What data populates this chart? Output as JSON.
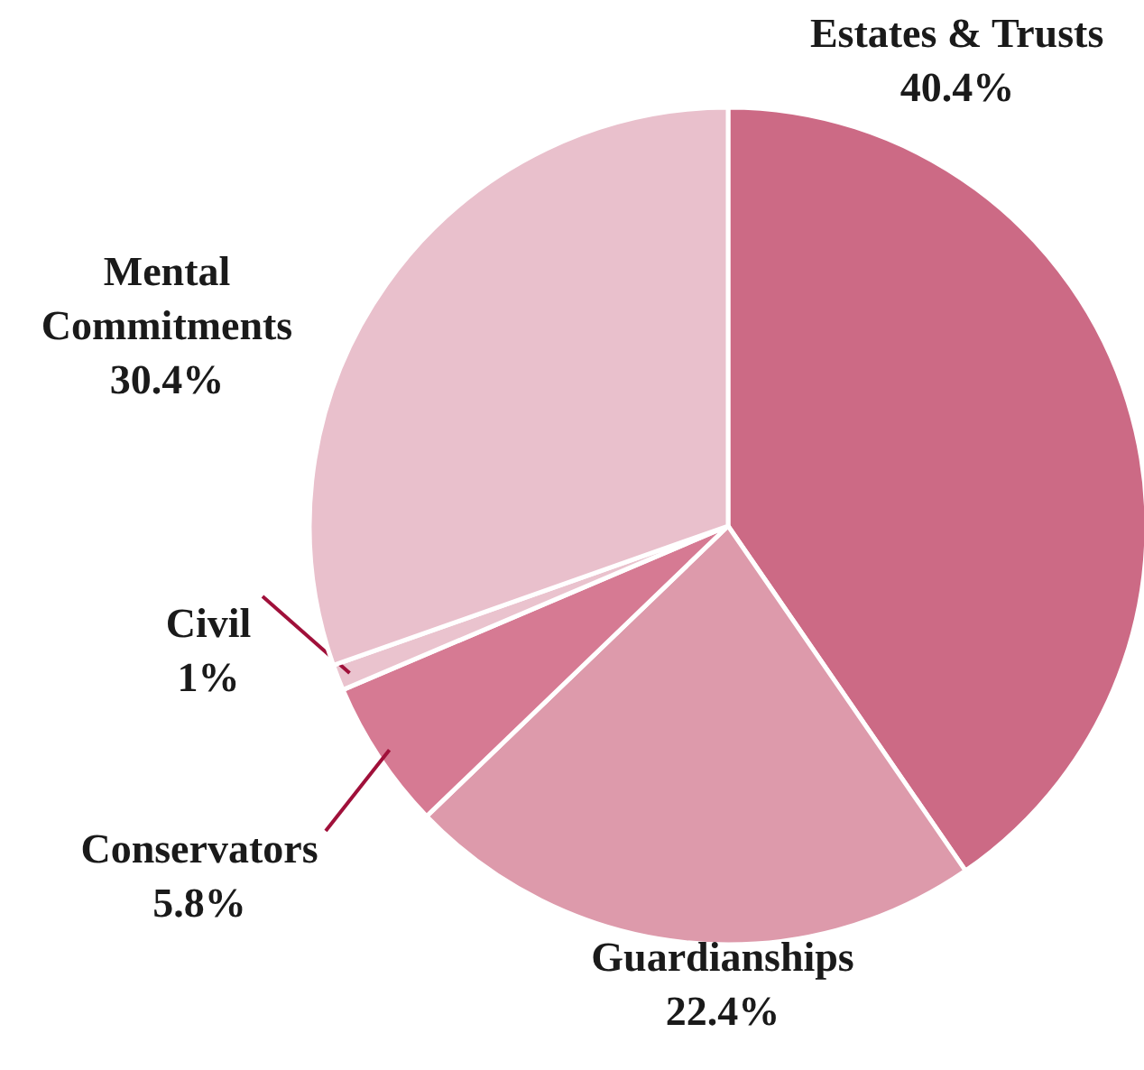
{
  "chart_data": {
    "type": "pie",
    "categories": [
      "Estates & Trusts",
      "Guardianships",
      "Conservators",
      "Civil",
      "Mental Commitments"
    ],
    "values": [
      40.4,
      22.4,
      5.8,
      1,
      30.4
    ],
    "value_labels": [
      "40.4%",
      "22.4%",
      "5.8%",
      "1%",
      "30.4%"
    ],
    "colors": [
      "#cc6a85",
      "#dd9aab",
      "#d67a93",
      "#eac3ce",
      "#e9c0cc"
    ]
  }
}
